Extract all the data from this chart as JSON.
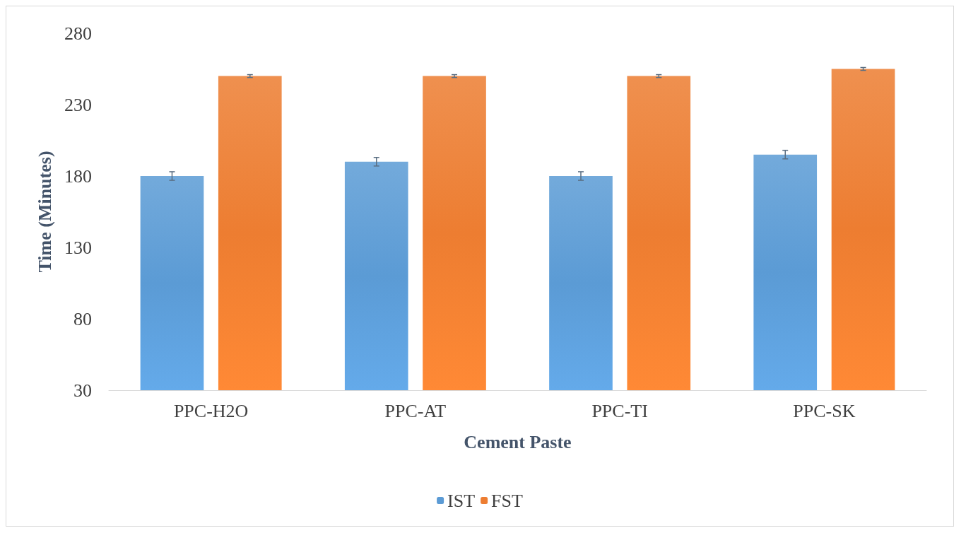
{
  "chart_data": {
    "type": "bar",
    "xlabel": "Cement Paste",
    "ylabel": "Time (Minutes)",
    "categories": [
      "PPC-H2O",
      "PPC-AT",
      "PPC-TI",
      "PPC-SK"
    ],
    "series": [
      {
        "name": "IST",
        "color": "#5b9bd5",
        "values": [
          180,
          190,
          180,
          195
        ],
        "errors": [
          3,
          3,
          3,
          3
        ]
      },
      {
        "name": "FST",
        "color": "#ed7d31",
        "values": [
          250,
          250,
          250,
          255
        ],
        "errors": [
          1,
          1,
          1,
          1
        ]
      }
    ],
    "ylim": [
      30,
      280
    ],
    "yticks": [
      30,
      80,
      130,
      180,
      230,
      280
    ],
    "grid": false,
    "legend": "bottom"
  }
}
